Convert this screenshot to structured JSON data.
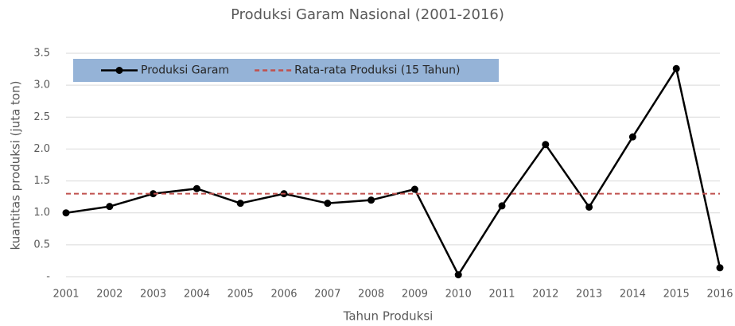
{
  "chart_data": {
    "type": "line",
    "title": "Produksi Garam Nasional (2001-2016)",
    "x_label": "Tahun Produksi",
    "y_label": "kuantitas produksi (juta ton)",
    "categories": [
      "2001",
      "2002",
      "2003",
      "2004",
      "2005",
      "2006",
      "2007",
      "2008",
      "2009",
      "2010",
      "2011",
      "2012",
      "2013",
      "2014",
      "2015",
      "2016"
    ],
    "series": [
      {
        "name": "Produksi Garam",
        "color": "#000000",
        "line_style": "solid",
        "marker": "circle",
        "values": [
          1.0,
          1.1,
          1.3,
          1.38,
          1.15,
          1.3,
          1.15,
          1.2,
          1.37,
          0.03,
          1.11,
          2.07,
          1.09,
          2.19,
          3.26,
          0.14
        ]
      },
      {
        "name": "Rata-rata Produksi (15 Tahun)",
        "color": "#c0504d",
        "line_style": "dashed",
        "marker": "none",
        "values": [
          1.3,
          1.3,
          1.3,
          1.3,
          1.3,
          1.3,
          1.3,
          1.3,
          1.3,
          1.3,
          1.3,
          1.3,
          1.3,
          1.3,
          1.3,
          1.3
        ]
      }
    ],
    "ylim": [
      0,
      3.5
    ],
    "yticks": [
      {
        "value": 0,
        "label": "-"
      },
      0.5,
      {
        "value": 1,
        "label": "1.0"
      },
      1.5,
      {
        "value": 2,
        "label": "2.0"
      },
      2.5,
      {
        "value": 3,
        "label": "3.0"
      },
      3.5
    ],
    "grid": true,
    "legend_position": "top-left",
    "legend_background": "#95b3d7"
  }
}
